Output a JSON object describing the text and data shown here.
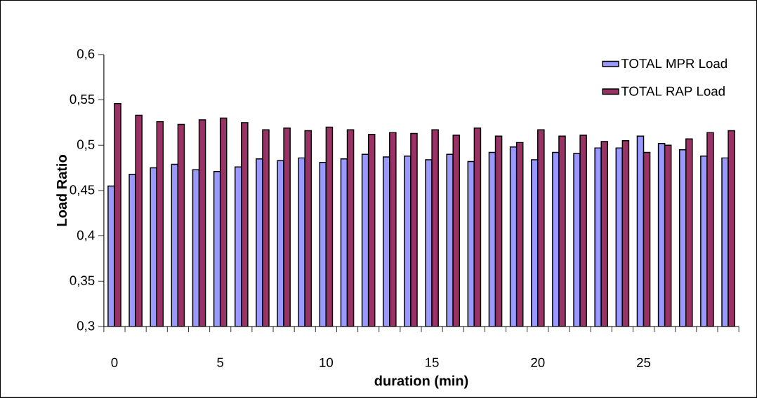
{
  "chart_data": {
    "type": "bar",
    "xlabel": "duration (min)",
    "ylabel": "Load Ratio",
    "categories": [
      "0",
      null,
      null,
      null,
      null,
      "5",
      null,
      null,
      null,
      null,
      "10",
      null,
      null,
      null,
      null,
      "15",
      null,
      null,
      null,
      null,
      "20",
      null,
      null,
      null,
      null,
      "25",
      null,
      null,
      null,
      null
    ],
    "series": [
      {
        "name": "TOTAL MPR Load",
        "color": "#9999ff",
        "values": [
          0.455,
          0.468,
          0.475,
          0.479,
          0.473,
          0.471,
          0.476,
          0.485,
          0.483,
          0.486,
          0.481,
          0.485,
          0.49,
          0.487,
          0.488,
          0.484,
          0.49,
          0.482,
          0.492,
          0.498,
          0.484,
          0.492,
          0.491,
          0.497,
          0.497,
          0.51,
          0.502,
          0.495,
          0.488,
          0.486
        ]
      },
      {
        "name": "TOTAL RAP Load",
        "color": "#993366",
        "values": [
          0.546,
          0.533,
          0.526,
          0.523,
          0.528,
          0.53,
          0.525,
          0.517,
          0.519,
          0.516,
          0.52,
          0.517,
          0.512,
          0.514,
          0.513,
          0.517,
          0.511,
          0.519,
          0.51,
          0.503,
          0.517,
          0.51,
          0.511,
          0.504,
          0.505,
          0.492,
          0.5,
          0.507,
          0.514,
          0.516
        ]
      }
    ],
    "ylim": [
      0.3,
      0.6
    ],
    "yticks": [
      {
        "value": 0.3,
        "label": "0,3"
      },
      {
        "value": 0.35,
        "label": "0,35"
      },
      {
        "value": 0.4,
        "label": "0,4"
      },
      {
        "value": 0.45,
        "label": "0,45"
      },
      {
        "value": 0.5,
        "label": "0,5"
      },
      {
        "value": 0.55,
        "label": "0,55"
      },
      {
        "value": 0.6,
        "label": "0,6"
      }
    ],
    "grid": false,
    "legend": "top right"
  }
}
